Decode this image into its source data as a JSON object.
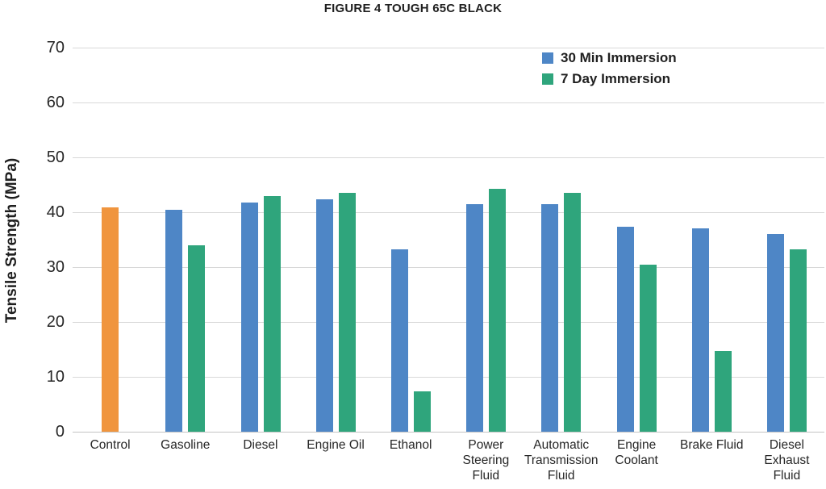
{
  "chart_data": {
    "type": "bar",
    "title": "FIGURE 4 TOUGH 65C BLACK",
    "xlabel": "",
    "ylabel": "Tensile Strength (MPa)",
    "ylim": [
      0,
      70
    ],
    "ytick_interval": 10,
    "grid": "horizontal",
    "legend_position": "top-right",
    "categories": [
      "Control",
      "Gasoline",
      "Diesel",
      "Engine Oil",
      "Ethanol",
      "Power Steering Fluid",
      "Automatic Transmission Fluid",
      "Engine Coolant",
      "Brake Fluid",
      "Diesel Exhaust Fluid"
    ],
    "series": [
      {
        "name": "30 Min Immersion",
        "color": "#4E86C6",
        "values": [
          null,
          40.5,
          41.7,
          42.3,
          33.2,
          41.5,
          41.5,
          37.4,
          37.1,
          36.0
        ]
      },
      {
        "name": "7 Day Immersion",
        "color": "#2FA57C",
        "values": [
          null,
          33.9,
          43.0,
          43.5,
          7.3,
          44.2,
          43.5,
          30.5,
          14.7,
          33.3
        ]
      }
    ],
    "single_bars": [
      {
        "category": "Control",
        "category_index": 0,
        "color": "#F0953E",
        "value": 40.9
      }
    ],
    "colors": {
      "gridline": "#D8D8D8",
      "baseline": "#C4C4C4",
      "text": "#1F1F1F"
    }
  }
}
